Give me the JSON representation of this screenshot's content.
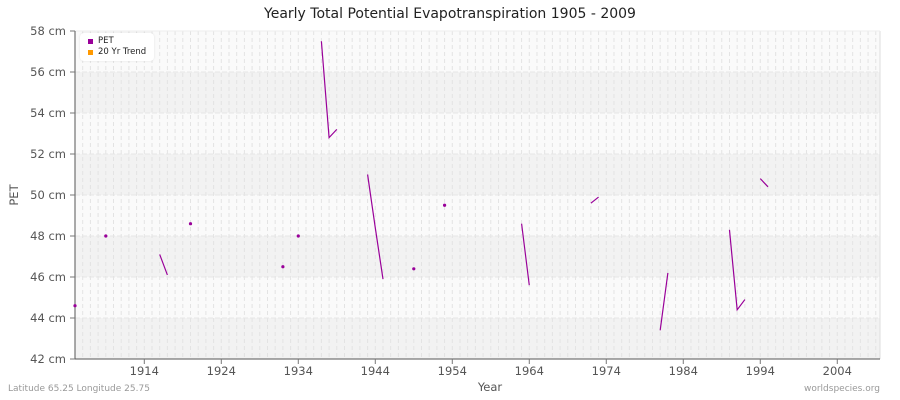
{
  "title": "Yearly Total Potential Evapotranspiration 1905 - 2009",
  "footer": {
    "location": "Latitude 65.25 Longitude 25.75",
    "source": "worldspecies.org"
  },
  "legend": [
    {
      "label": "PET",
      "color": "#990099"
    },
    {
      "label": "20 Yr Trend",
      "color": "#ff9900"
    }
  ],
  "colors": {
    "series": "#990099",
    "band_dark": "#f2f2f2",
    "band_light": "#fafafa",
    "axis": "#555555"
  },
  "chart_data": {
    "type": "line",
    "title": "Yearly Total Potential Evapotranspiration 1905 - 2009",
    "xlabel": "Year",
    "ylabel": "PET",
    "xlim": [
      1905,
      2009
    ],
    "ylim": [
      42,
      58
    ],
    "x_ticks": [
      1914,
      1924,
      1934,
      1944,
      1954,
      1964,
      1974,
      1984,
      1994,
      2004
    ],
    "y_ticks": [
      "42 cm",
      "44 cm",
      "46 cm",
      "48 cm",
      "50 cm",
      "52 cm",
      "54 cm",
      "56 cm",
      "58 cm"
    ],
    "y_tick_values": [
      42,
      44,
      46,
      48,
      50,
      52,
      54,
      56,
      58
    ],
    "grid": true,
    "legend_position": "top-left",
    "series": [
      {
        "name": "PET",
        "color": "#990099",
        "segments": [
          [
            [
              1905,
              44.6
            ]
          ],
          [
            [
              1909,
              48.0
            ]
          ],
          [
            [
              1916,
              47.1
            ],
            [
              1917,
              46.1
            ]
          ],
          [
            [
              1920,
              48.6
            ]
          ],
          [
            [
              1932,
              46.5
            ]
          ],
          [
            [
              1934,
              48.0
            ]
          ],
          [
            [
              1937,
              57.5
            ],
            [
              1938,
              52.8
            ],
            [
              1939,
              53.2
            ]
          ],
          [
            [
              1943,
              51.0
            ],
            [
              1944,
              48.4
            ],
            [
              1945,
              45.9
            ]
          ],
          [
            [
              1949,
              46.4
            ]
          ],
          [
            [
              1953,
              49.5
            ]
          ],
          [
            [
              1963,
              48.6
            ],
            [
              1964,
              45.6
            ]
          ],
          [
            [
              1972,
              49.6
            ],
            [
              1973,
              49.9
            ]
          ],
          [
            [
              1981,
              43.4
            ],
            [
              1982,
              46.2
            ]
          ],
          [
            [
              1990,
              48.3
            ],
            [
              1991,
              44.4
            ],
            [
              1992,
              44.9
            ]
          ],
          [
            [
              1994,
              50.8
            ],
            [
              1995,
              50.4
            ]
          ]
        ]
      },
      {
        "name": "20 Yr Trend",
        "color": "#ff9900",
        "segments": []
      }
    ]
  }
}
